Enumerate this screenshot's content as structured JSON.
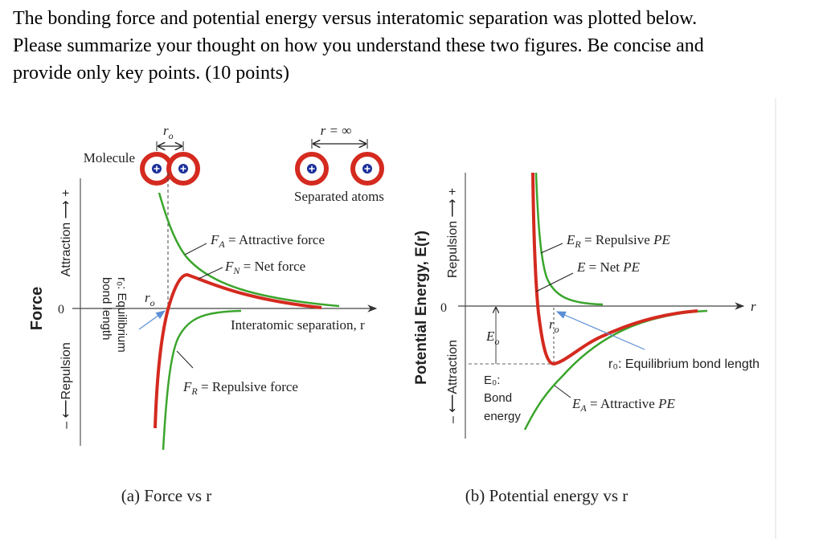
{
  "question": {
    "lines": [
      "The bonding force and potential energy versus interatomic separation was plotted below.",
      "Please summarize your thought on how you understand these two figures. Be concise and",
      "provide only key points. (10 points)"
    ]
  },
  "colors": {
    "net_curve": "#d42a1f",
    "component_curve": "#3aa52c",
    "atom_ring": "#d42a1f",
    "nucleus": "#1a2f9a",
    "pointer_arrow": "#5b8fd6"
  },
  "figure_a": {
    "caption": "(a) Force vs r",
    "y_title": "Force",
    "y_positive": "Attraction ⟶ +",
    "y_negative": "– ⟵Repulsion",
    "zero": "0",
    "x_label": "Interatomic separation, r",
    "molecule_label": "Molecule",
    "separated_label": "Separated atoms",
    "ro_top": "r",
    "ro_sub": "o",
    "r_inf": "r = ∞",
    "ro_axis": "r",
    "eq_line1": "r₀: Equilibrium",
    "eq_line2": "bond length",
    "fa": {
      "sym": "F",
      "sub": "A",
      "text": " = Attractive force"
    },
    "fn": {
      "sym": "F",
      "sub": "N",
      "text": " = Net force"
    },
    "fr": {
      "sym": "F",
      "sub": "R",
      "text": " = Repulsive force"
    },
    "atom_icon": "plus-nucleus"
  },
  "figure_b": {
    "caption": "(b) Potential energy vs r",
    "y_title": "Potential Energy, E(r)",
    "y_positive": "Repulsion ⟶ +",
    "y_negative": "– ⟵Attraction",
    "zero": "0",
    "x_label": "r",
    "eo": {
      "sym": "E",
      "sub": "o"
    },
    "ro": {
      "sym": "r",
      "sub": "o"
    },
    "eq_label": "r₀: Equilibrium bond length",
    "bond_energy": [
      "E₀:",
      "Bond",
      "energy"
    ],
    "er": {
      "sym": "E",
      "sub": "R",
      "text": " = Repulsive ",
      "pe": "PE"
    },
    "en": {
      "sym": "E",
      "text": " = Net  ",
      "pe": "PE"
    },
    "ea": {
      "sym": "E",
      "sub": "A",
      "text": " = Attractive ",
      "pe": "PE"
    }
  }
}
